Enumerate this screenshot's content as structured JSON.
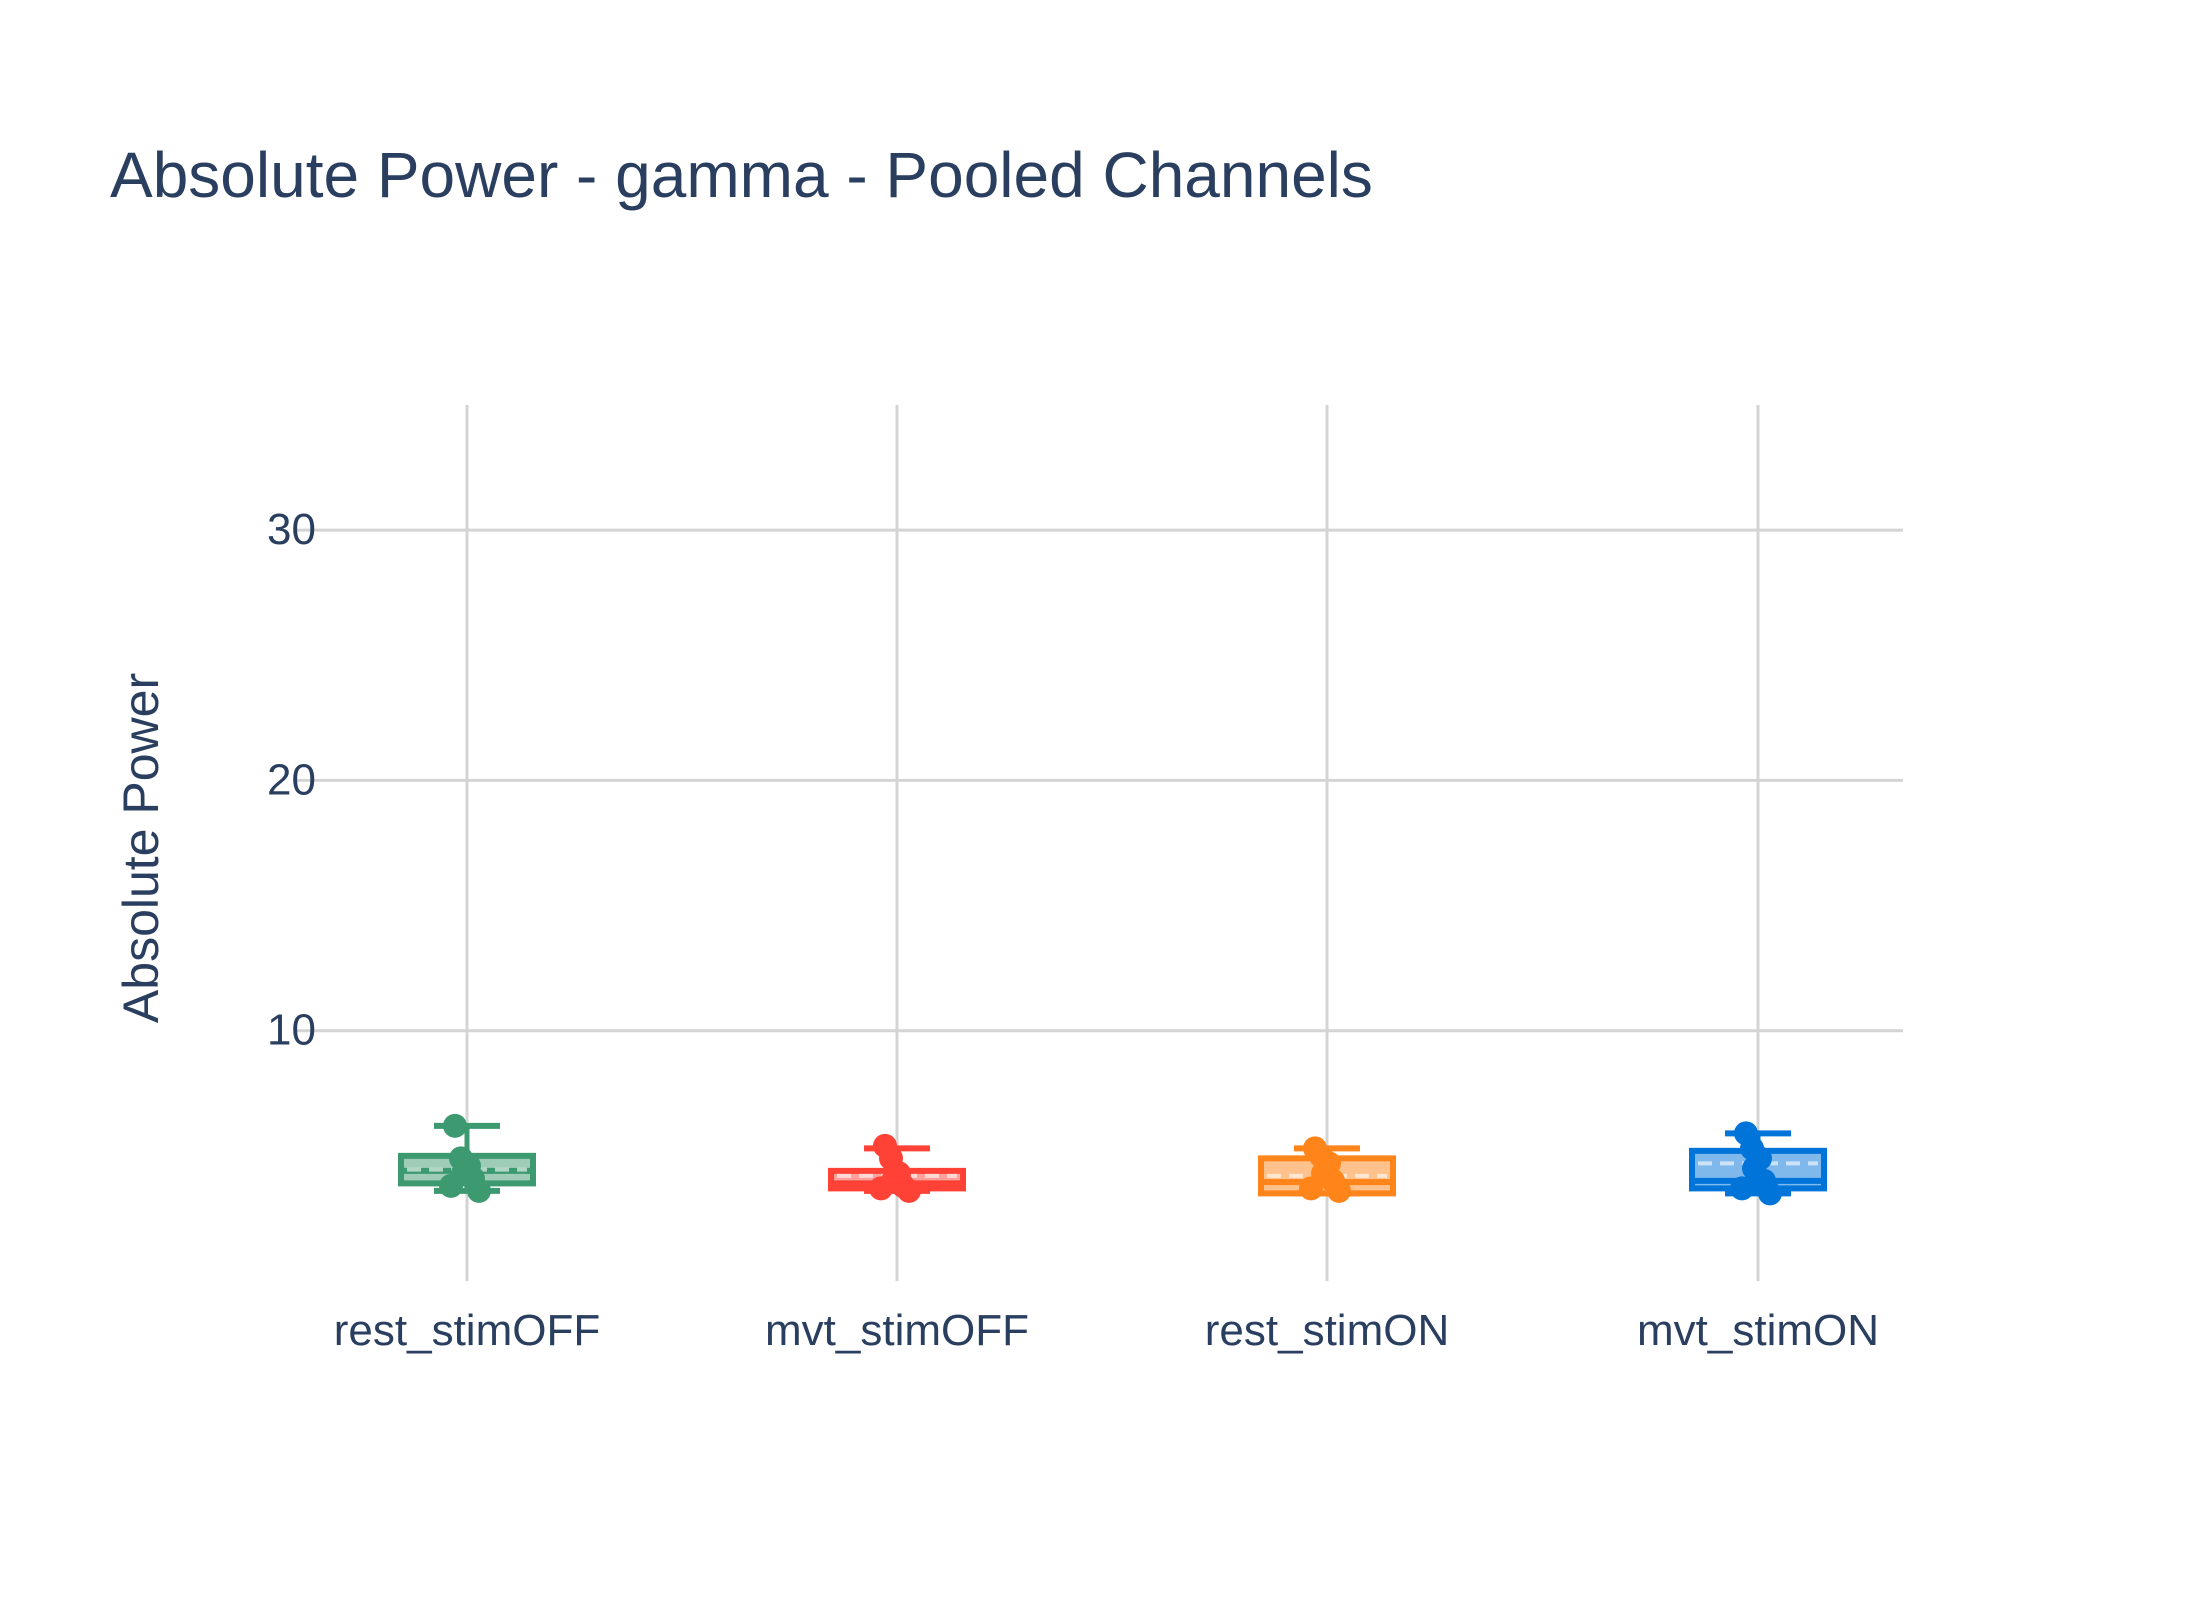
{
  "chart_data": {
    "type": "box",
    "title": "Absolute Power - gamma - Pooled Channels",
    "xlabel": "",
    "ylabel": "Absolute Power",
    "ylim": [
      0,
      35
    ],
    "yticks": [
      10,
      20,
      30
    ],
    "grid": true,
    "categories": [
      "rest_stimOFF",
      "mvt_stimOFF",
      "rest_stimON",
      "mvt_stimON"
    ],
    "series": [
      {
        "category": "rest_stimOFF",
        "color": "#3d9970",
        "box": {
          "q1": 3.9,
          "median": 4.4,
          "mean": 4.45,
          "q3": 5.0,
          "lower_fence": 3.6,
          "upper_fence": 6.2
        },
        "points": [
          6.2,
          4.9,
          4.6,
          4.3,
          4.1,
          3.8,
          3.6
        ]
      },
      {
        "category": "mvt_stimOFF",
        "color": "#ff4136",
        "box": {
          "q1": 3.7,
          "median": 3.9,
          "mean": 4.2,
          "q3": 4.4,
          "lower_fence": 3.6,
          "upper_fence": 5.3
        },
        "points": [
          5.4,
          4.9,
          4.3,
          4.0,
          3.8,
          3.7,
          3.6
        ]
      },
      {
        "category": "rest_stimON",
        "color": "#ff851b",
        "box": {
          "q1": 3.5,
          "median": 3.95,
          "mean": 4.2,
          "q3": 4.9,
          "lower_fence": 3.5,
          "upper_fence": 5.3
        },
        "points": [
          5.3,
          5.0,
          4.7,
          4.3,
          4.0,
          3.7,
          3.6
        ]
      },
      {
        "category": "mvt_stimON",
        "color": "#0074d9",
        "box": {
          "q1": 3.7,
          "median": 4.0,
          "mean": 4.7,
          "q3": 5.2,
          "lower_fence": 3.5,
          "upper_fence": 5.9
        },
        "points": [
          5.9,
          5.3,
          4.9,
          4.5,
          4.0,
          3.7,
          3.5
        ]
      }
    ]
  }
}
